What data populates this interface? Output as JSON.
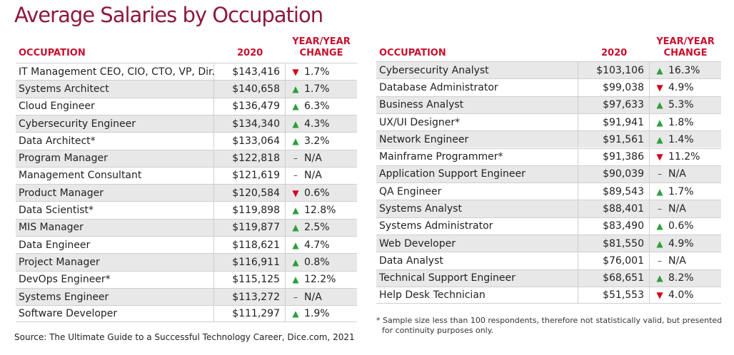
{
  "title": "Average Salaries by Occupation",
  "tables": [
    {
      "headers": {
        "occupation": "OCCUPATION",
        "year": "2020",
        "change": [
          "YEAR/YEAR",
          "CHANGE"
        ]
      },
      "rows": [
        [
          "IT Management CEO, CIO, CTO, VP, Dir.",
          "$143,416",
          "▼",
          "1.7%"
        ],
        [
          "Systems Architect",
          "$140,658",
          "▲",
          "1.7%"
        ],
        [
          "Cloud Engineer",
          "$136,479",
          "▲",
          "6.3%"
        ],
        [
          "Cybersecurity Engineer",
          "$134,340",
          "▲",
          "4.3%"
        ],
        [
          "Data Architect*",
          "$133,064",
          "▲",
          "3.2%"
        ],
        [
          "Program Manager",
          "$122,818",
          "–",
          "N/A"
        ],
        [
          "Management Consultant",
          "$121,619",
          "–",
          "N/A"
        ],
        [
          "Product Manager",
          "$120,584",
          "▼",
          "0.6%"
        ],
        [
          "Data Scientist*",
          "$119,898",
          "▲",
          "12.8%"
        ],
        [
          "MIS Manager",
          "$119,877",
          "▲",
          "2.5%"
        ],
        [
          "Data Engineer",
          "$118,621",
          "▲",
          "4.7%"
        ],
        [
          "Project Manager",
          "$116,911",
          "▲",
          "0.8%"
        ],
        [
          "DevOps Engineer*",
          "$115,125",
          "▲",
          "12.2%"
        ],
        [
          "Systems Engineer",
          "$113,272",
          "–",
          "N/A"
        ],
        [
          "Software Developer",
          "$111,297",
          "▲",
          "1.9%"
        ]
      ]
    },
    {
      "headers": {
        "occupation": "OCCUPATION",
        "year": "2020",
        "change": [
          "YEAR/YEAR",
          "CHANGE"
        ]
      },
      "rows": [
        [
          "Cybersecurity Analyst",
          "$103,106",
          "▲",
          "16.3%"
        ],
        [
          "Database Administrator",
          "$99,038",
          "▼",
          "4.9%"
        ],
        [
          "Business Analyst",
          "$97,633",
          "▲",
          "5.3%"
        ],
        [
          "UX/UI Designer*",
          "$91,941",
          "▲",
          "1.8%"
        ],
        [
          "Network Engineer",
          "$91,561",
          "▲",
          "1.4%"
        ],
        [
          "Mainframe Programmer*",
          "$91,386",
          "▼",
          "11.2%"
        ],
        [
          "Application Support Engineer",
          "$90,039",
          "–",
          "N/A"
        ],
        [
          "QA Engineer",
          "$89,543",
          "▲",
          "1.7%"
        ],
        [
          "Systems Analyst",
          "$88,401",
          "–",
          "N/A"
        ],
        [
          "Systems Administrator",
          "$83,490",
          "▲",
          "0.6%"
        ],
        [
          "Web Developer",
          "$81,550",
          "▲",
          "4.9%"
        ],
        [
          "Data Analyst",
          "$76,001",
          "–",
          "N/A"
        ],
        [
          "Technical Support Engineer",
          "$68,651",
          "▲",
          "8.2%"
        ],
        [
          "Help Desk Technician",
          "$51,553",
          "▼",
          "4.0%"
        ]
      ]
    }
  ],
  "footnote": [
    "* Sample size less than 100 respondents, therefore not statistically valid, but presented",
    "for continuity purposes only."
  ],
  "source": "Source: The Ultimate Guide to a Successful Technology Career, Dice.com, 2021"
}
